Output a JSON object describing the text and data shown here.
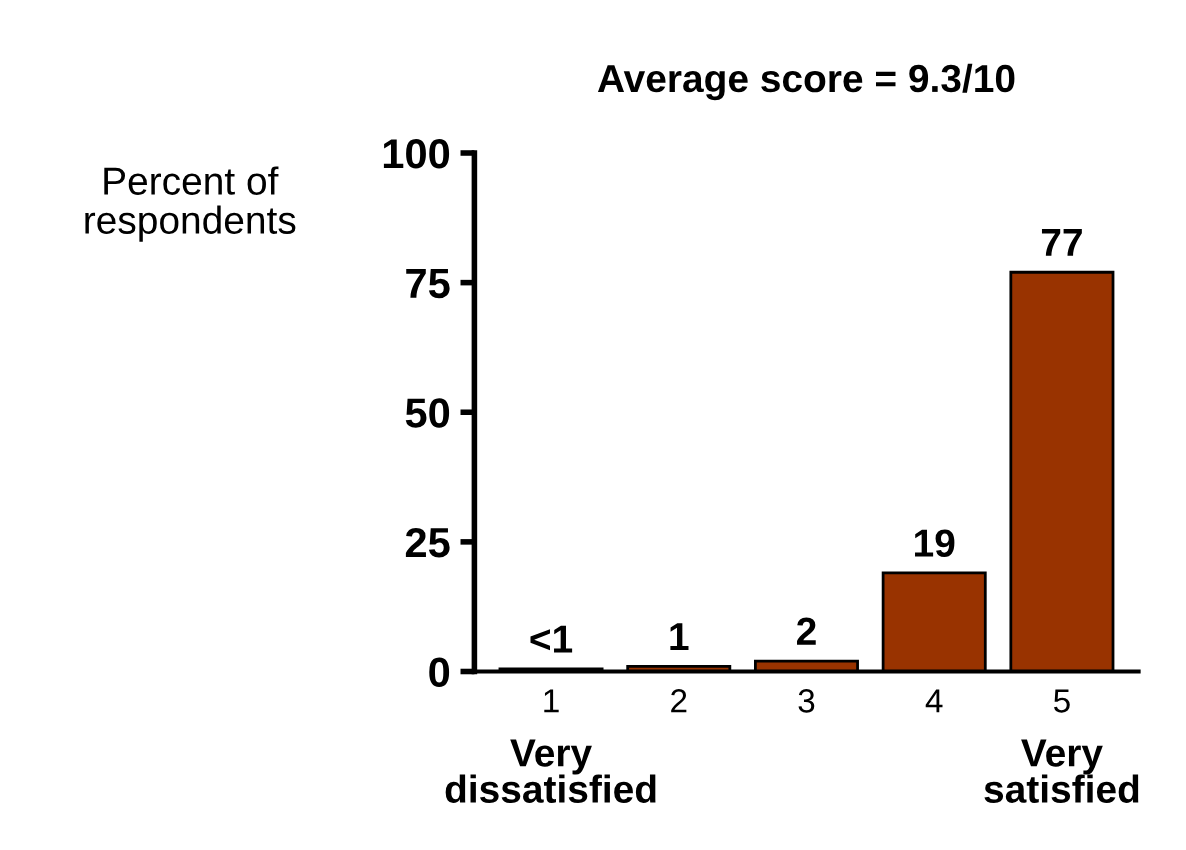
{
  "chart_data": {
    "type": "bar",
    "title": "Average score = 9.3/10",
    "ylabel": "Percent of\nrespondents",
    "categories": [
      "1",
      "2",
      "3",
      "4",
      "5"
    ],
    "values": [
      0.5,
      1,
      2,
      19,
      77
    ],
    "value_labels": [
      "<1",
      "1",
      "2",
      "19",
      "77"
    ],
    "color": "#993300",
    "ylim": [
      0,
      100
    ],
    "yticks": [
      0,
      25,
      50,
      75,
      100
    ],
    "grid": false,
    "legend": false,
    "annotations": [
      "Very\ndissatisfied",
      "Very\nsatisfied"
    ]
  }
}
